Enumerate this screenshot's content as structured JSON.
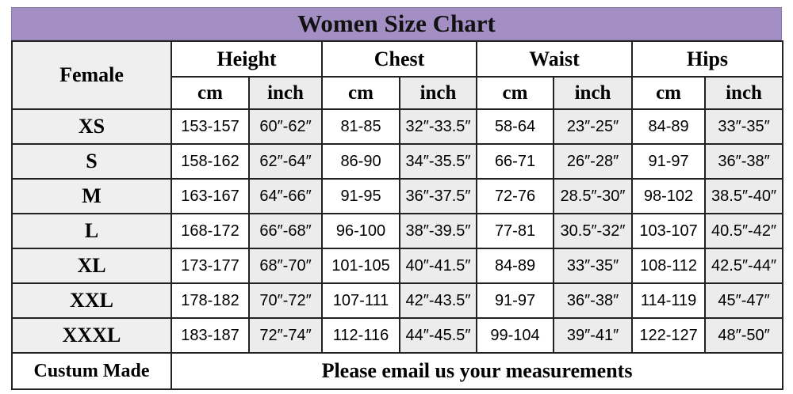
{
  "title": "Women Size Chart",
  "corner": "Female",
  "groups": [
    "Height",
    "Chest",
    "Waist",
    "Hips"
  ],
  "units": [
    "cm",
    "inch",
    "cm",
    "inch",
    "cm",
    "inch",
    "cm",
    "inch"
  ],
  "rows": [
    {
      "size": "XS",
      "values": [
        "153-157",
        "60″-62″",
        "81-85",
        "32″-33.5″",
        "58-64",
        "23″-25″",
        "84-89",
        "33″-35″"
      ]
    },
    {
      "size": "S",
      "values": [
        "158-162",
        "62″-64″",
        "86-90",
        "34″-35.5″",
        "66-71",
        "26″-28″",
        "91-97",
        "36″-38″"
      ]
    },
    {
      "size": "M",
      "values": [
        "163-167",
        "64″-66″",
        "91-95",
        "36″-37.5″",
        "72-76",
        "28.5″-30″",
        "98-102",
        "38.5″-40″"
      ]
    },
    {
      "size": "L",
      "values": [
        "168-172",
        "66″-68″",
        "96-100",
        "38″-39.5″",
        "77-81",
        "30.5″-32″",
        "103-107",
        "40.5″-42″"
      ]
    },
    {
      "size": "XL",
      "values": [
        "173-177",
        "68″-70″",
        "101-105",
        "40″-41.5″",
        "84-89",
        "33″-35″",
        "108-112",
        "42.5″-44″"
      ]
    },
    {
      "size": "XXL",
      "values": [
        "178-182",
        "70″-72″",
        "107-111",
        "42″-43.5″",
        "91-97",
        "36″-38″",
        "114-119",
        "45″-47″"
      ]
    },
    {
      "size": "XXXL",
      "values": [
        "183-187",
        "72″-74″",
        "112-116",
        "44″-45.5″",
        "99-104",
        "39″-41″",
        "122-127",
        "48″-50″"
      ]
    }
  ],
  "custom": {
    "label": "Custum Made",
    "message": "Please email us your measurements"
  },
  "colors": {
    "title_bar": "#a48fc4",
    "inch_bg": "#ececec"
  }
}
